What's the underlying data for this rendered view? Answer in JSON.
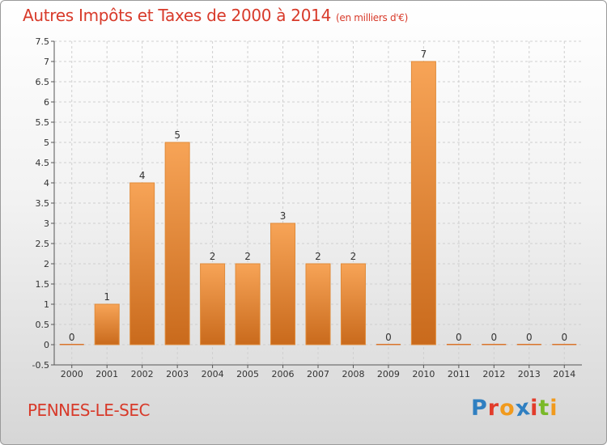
{
  "header": {
    "title": "Autres Impôts et Taxes de 2000 à 2014",
    "subtitle": "(en milliers d'€)"
  },
  "footer": {
    "commune": "PENNES-LE-SEC",
    "logo_letters": [
      "P",
      "r",
      "o",
      "x",
      "i",
      "t",
      "i"
    ]
  },
  "colors": {
    "title": "#d83a2a",
    "bar_top": "#f7a457",
    "bar_bottom": "#c96a1c",
    "logo_letters": [
      "#2f7fc1",
      "#e23c2b",
      "#f19a1d",
      "#2f7fc1",
      "#e23c2b",
      "#7ab929",
      "#f19a1d"
    ]
  },
  "chart_data": {
    "type": "bar",
    "categories": [
      "2000",
      "2001",
      "2002",
      "2003",
      "2004",
      "2005",
      "2006",
      "2007",
      "2008",
      "2009",
      "2010",
      "2011",
      "2012",
      "2013",
      "2014"
    ],
    "values": [
      0,
      1,
      4,
      5,
      2,
      2,
      3,
      2,
      2,
      0,
      7,
      0,
      0,
      0,
      0
    ],
    "data_labels": [
      "0",
      "1",
      "4",
      "5",
      "2",
      "2",
      "3",
      "2",
      "2",
      "0",
      "7",
      "0",
      "0",
      "0",
      "0"
    ],
    "yticks": [
      -0.5,
      0,
      0.5,
      1,
      1.5,
      2,
      2.5,
      3,
      3.5,
      4,
      4.5,
      5,
      5.5,
      6,
      6.5,
      7,
      7.5
    ],
    "ytick_labels": [
      "-0.5",
      "0",
      "0.5",
      "1",
      "1.5",
      "2",
      "2.5",
      "3",
      "3.5",
      "4",
      "4.5",
      "5",
      "5.5",
      "6",
      "6.5",
      "7",
      "7.5"
    ],
    "ylim": [
      -0.5,
      7.5
    ],
    "grid": true,
    "legend": false,
    "title": "Autres Impôts et Taxes de 2000 à 2014",
    "xlabel": "",
    "ylabel": ""
  }
}
